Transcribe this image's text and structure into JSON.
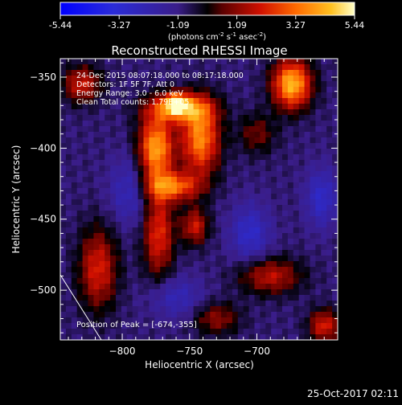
{
  "chart_data": {
    "type": "heatmap",
    "title": "Reconstructed RHESSI Image",
    "xlabel": "Heliocentric X (arcsec)",
    "ylabel": "Heliocentric Y (arcsec)",
    "xlim": [
      -846,
      -640
    ],
    "ylim": [
      -535,
      -337
    ],
    "x_ticks": [
      -800,
      -750,
      -700
    ],
    "y_ticks": [
      -350,
      -400,
      -450,
      -500
    ],
    "colorbar": {
      "ticks": [
        "-5.44",
        "-3.27",
        "-1.09",
        "1.09",
        "3.27",
        "5.44"
      ],
      "range": [
        -5.44,
        5.44
      ],
      "unit_label": "(photons cm",
      "unit_exp1": "-2",
      "unit_mid": " s",
      "unit_exp2": "-1",
      "unit_mid2": " asec",
      "unit_exp3": "-2",
      "unit_end": ")"
    },
    "annotations": [
      "24-Dec-2015 08:07:18.000 to 08:17:18.000",
      "Detectors: 1F 5F 7F, Att 0",
      "Energy Range: 3.0 - 6.0 keV",
      "Clean     Total counts: 1.79E+05"
    ],
    "peak_label": "Position of Peak = [-674,-355]",
    "peak": [
      -674,
      -355
    ],
    "features": [
      {
        "x": -775,
        "y": -400,
        "sx": 9,
        "sy": 16,
        "amp": 5.0
      },
      {
        "x": -742,
        "y": -393,
        "sx": 10,
        "sy": 18,
        "amp": 4.6
      },
      {
        "x": -758,
        "y": -372,
        "sx": 16,
        "sy": 7,
        "amp": 4.2
      },
      {
        "x": -762,
        "y": -427,
        "sx": 14,
        "sy": 7,
        "amp": 3.8
      },
      {
        "x": -773,
        "y": -460,
        "sx": 8,
        "sy": 22,
        "amp": 3.2
      },
      {
        "x": -746,
        "y": -455,
        "sx": 7,
        "sy": 9,
        "amp": 2.8
      },
      {
        "x": -760,
        "y": -368,
        "sx": 6,
        "sy": 5,
        "amp": 3.4
      },
      {
        "x": -674,
        "y": -355,
        "sx": 10,
        "sy": 12,
        "amp": 5.4
      },
      {
        "x": -830,
        "y": -355,
        "sx": 10,
        "sy": 9,
        "amp": 2.8
      },
      {
        "x": -818,
        "y": -485,
        "sx": 10,
        "sy": 20,
        "amp": 3.0
      },
      {
        "x": -690,
        "y": -490,
        "sx": 16,
        "sy": 9,
        "amp": 2.6
      },
      {
        "x": -650,
        "y": -525,
        "sx": 8,
        "sy": 8,
        "amp": 3.0
      },
      {
        "x": -700,
        "y": -390,
        "sx": 10,
        "sy": 10,
        "amp": 1.6
      },
      {
        "x": -730,
        "y": -520,
        "sx": 12,
        "sy": 8,
        "amp": 2.0
      },
      {
        "x": -760,
        "y": -505,
        "sx": 14,
        "sy": 10,
        "amp": -1.5
      },
      {
        "x": -705,
        "y": -460,
        "sx": 10,
        "sy": 14,
        "amp": -2.0
      },
      {
        "x": -795,
        "y": -430,
        "sx": 10,
        "sy": 16,
        "amp": -1.6
      },
      {
        "x": -652,
        "y": -435,
        "sx": 8,
        "sy": 14,
        "amp": -2.0
      }
    ]
  },
  "footer": {
    "timestamp": "25-Oct-2017 02:11"
  }
}
